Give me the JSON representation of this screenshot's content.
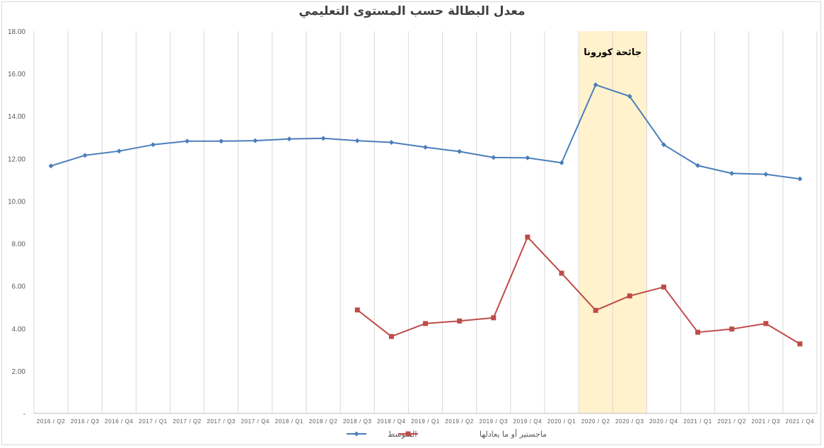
{
  "chart_data": {
    "type": "line",
    "title": "معدل البطالة حسب المستوى التعليمي",
    "categories": [
      "2016 / Q2",
      "2016 / Q3",
      "2016 / Q4",
      "2017 / Q1",
      "2017 / Q2",
      "2017 / Q3",
      "2017 / Q4",
      "2018 / Q1",
      "2018 / Q2",
      "2018 / Q3",
      "2018 / Q4",
      "2019 / Q1",
      "2019 / Q2",
      "2019 / Q3",
      "2019 / Q4",
      "2020 / Q1",
      "2020 / Q2",
      "2020 / Q3",
      "2020 / Q4",
      "2021 / Q1",
      "2021 / Q2",
      "2021 / Q3",
      "2021 / Q4"
    ],
    "ylim": [
      0,
      18
    ],
    "yticks": [
      "-",
      "2.00",
      "4.00",
      "6.00",
      "8.00",
      "10.00",
      "12.00",
      "14.00",
      "16.00",
      "18.00"
    ],
    "grid": "vertical",
    "legend_position": "bottom",
    "series": [
      {
        "name": "المتوسط",
        "color": "#4a7ebb",
        "marker": "diamond",
        "values": [
          11.65,
          12.15,
          12.35,
          12.65,
          12.82,
          12.82,
          12.84,
          12.92,
          12.95,
          12.84,
          12.76,
          12.53,
          12.33,
          12.05,
          12.03,
          11.8,
          15.47,
          14.93,
          12.65,
          11.67,
          11.3,
          11.26,
          11.04
        ]
      },
      {
        "name": "ماجستير أو ما يعادلها",
        "color": "#be4b48",
        "marker": "square",
        "values": [
          null,
          null,
          null,
          null,
          null,
          null,
          null,
          null,
          null,
          4.87,
          3.62,
          4.23,
          4.35,
          4.5,
          8.3,
          6.6,
          4.85,
          5.53,
          5.95,
          3.82,
          3.97,
          4.23,
          3.27
        ]
      }
    ],
    "annotation": {
      "text": "جائحة كورونا",
      "from": "2020 / Q2",
      "to": "2020 / Q3",
      "color": "#fff2cc"
    }
  }
}
